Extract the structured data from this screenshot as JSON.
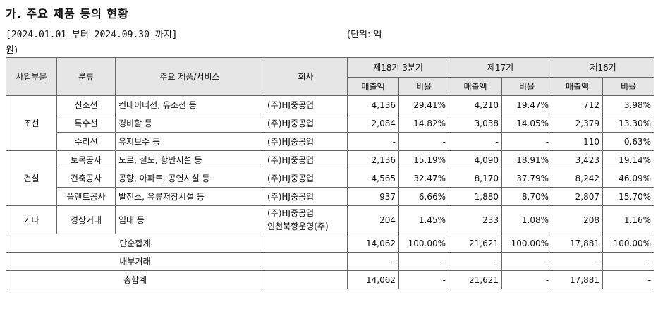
{
  "heading": {
    "title": "가. 주요 제품 등의 현황",
    "period": "[2024.01.01 부터 2024.09.30 까지]",
    "unit_part1": "(단위: 억",
    "unit_part2": "원)"
  },
  "table": {
    "headers": {
      "business": "사업부문",
      "category": "분류",
      "product": "주요 제품/서비스",
      "company": "회사",
      "periods": [
        "제18기 3분기",
        "제17기",
        "제16기"
      ],
      "sales": "매출액",
      "ratio": "비율"
    },
    "groups": {
      "shipbuilding": "조선",
      "construction": "건설",
      "other": "기타"
    },
    "rows": [
      {
        "category": "신조선",
        "product": "컨테이너선, 유조선 등",
        "company": "(주)HJ중공업",
        "company2": "",
        "v": [
          "4,136",
          "29.41%",
          "4,210",
          "19.47%",
          "712",
          "3.98%"
        ]
      },
      {
        "category": "특수선",
        "product": "경비함 등",
        "company": "(주)HJ중공업",
        "company2": "",
        "v": [
          "2,084",
          "14.82%",
          "3,038",
          "14.05%",
          "2,379",
          "13.30%"
        ]
      },
      {
        "category": "수리선",
        "product": "유지보수 등",
        "company": "(주)HJ중공업",
        "company2": "",
        "v": [
          "-",
          "-",
          "-",
          "-",
          "110",
          "0.63%"
        ]
      },
      {
        "category": "토목공사",
        "product": "도로, 철도, 항만시설 등",
        "company": "(주)HJ중공업",
        "company2": "",
        "v": [
          "2,136",
          "15.19%",
          "4,090",
          "18.91%",
          "3,423",
          "19.14%"
        ]
      },
      {
        "category": "건축공사",
        "product": "공항, 아파트, 공연시설 등",
        "company": "(주)HJ중공업",
        "company2": "",
        "v": [
          "4,565",
          "32.47%",
          "8,170",
          "37.79%",
          "8,242",
          "46.09%"
        ]
      },
      {
        "category": "플랜트공사",
        "product": "발전소, 유류저장시설 등",
        "company": "(주)HJ중공업",
        "company2": "",
        "v": [
          "937",
          "6.66%",
          "1,880",
          "8.70%",
          "2,807",
          "15.70%"
        ]
      },
      {
        "category": "경상거래",
        "product": "임대 등",
        "company": "(주)HJ중공업",
        "company2": "인천북항운영(주)",
        "v": [
          "204",
          "1.45%",
          "233",
          "1.08%",
          "208",
          "1.16%"
        ]
      }
    ],
    "totals": [
      {
        "label": "단순합계",
        "v": [
          "14,062",
          "100.00%",
          "21,621",
          "100.00%",
          "17,881",
          "100.00%"
        ]
      },
      {
        "label": "내부거래",
        "v": [
          "-",
          "-",
          "-",
          "-",
          "-",
          "-"
        ]
      },
      {
        "label": "총합계",
        "v": [
          "14,062",
          "-",
          "21,621",
          "-",
          "17,881",
          "-"
        ]
      }
    ]
  }
}
